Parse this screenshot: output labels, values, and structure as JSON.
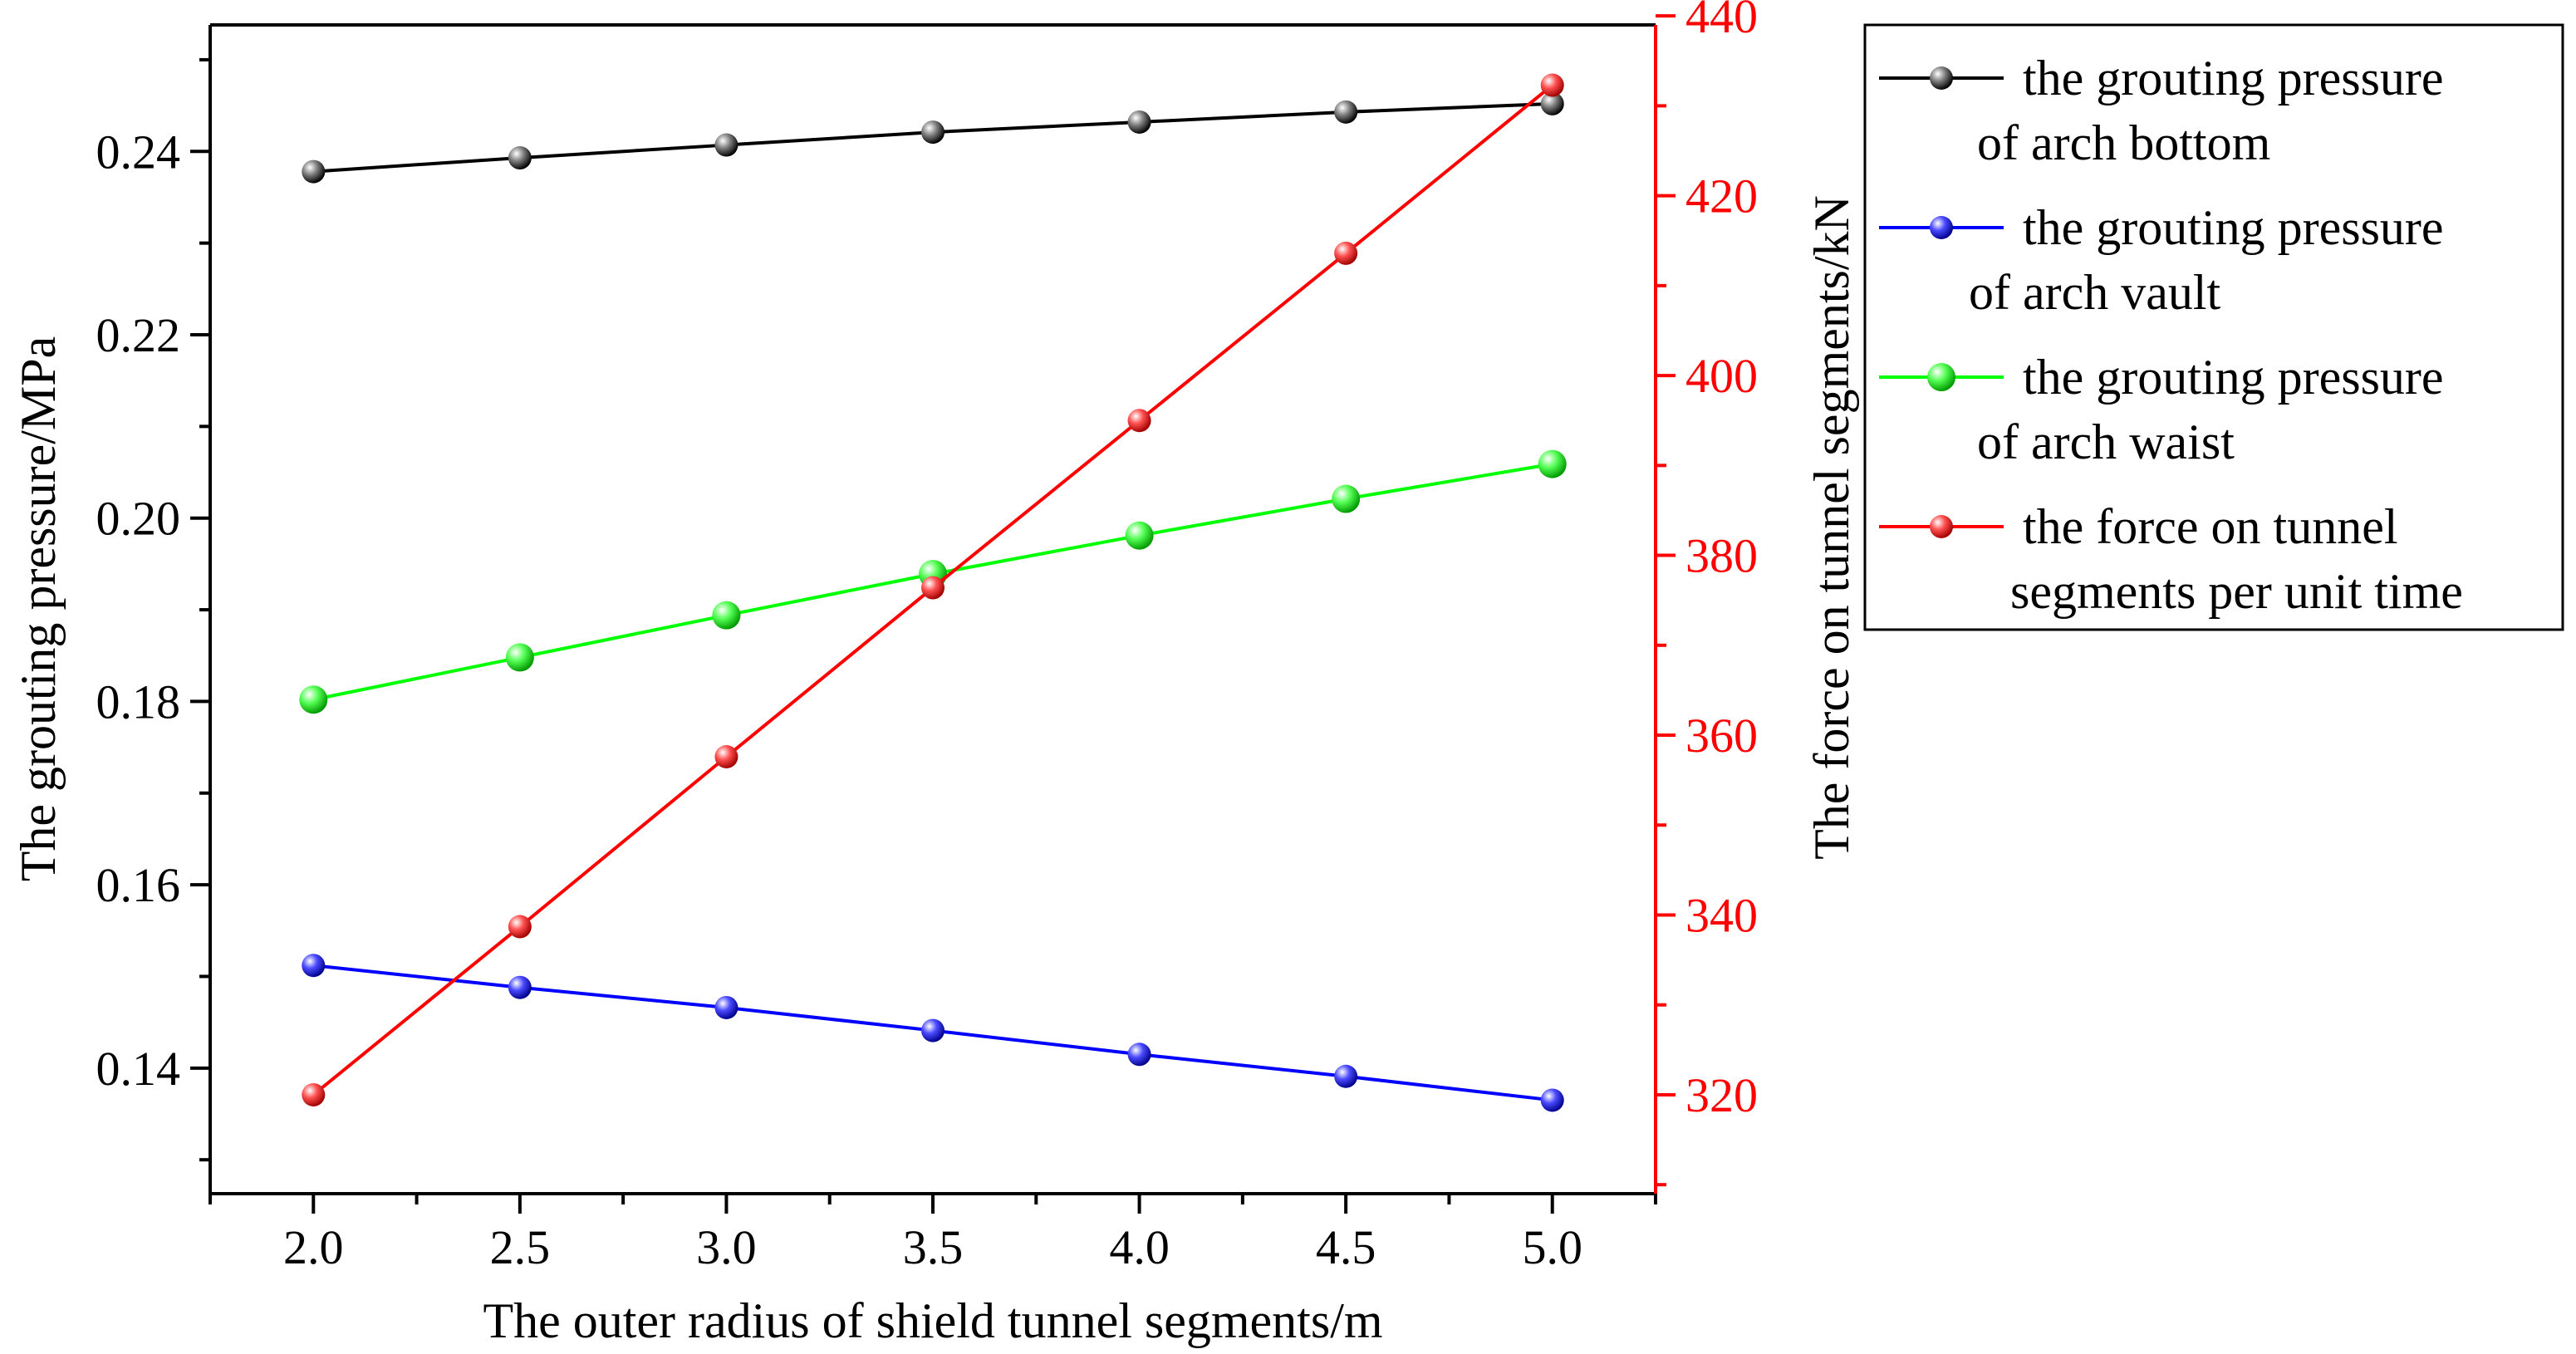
{
  "chart_data": {
    "type": "line",
    "x": [
      2.0,
      2.5,
      3.0,
      3.5,
      4.0,
      4.5,
      5.0
    ],
    "x_tick_labels": [
      "2.0",
      "2.5",
      "3.0",
      "3.5",
      "4.0",
      "4.5",
      "5.0"
    ],
    "xlabel": "The outer radius of shield tunnel segments/m",
    "xlim": [
      1.75,
      5.25
    ],
    "ylabel_left": "The grouting pressure/MPa",
    "ylim_left": [
      0.1263,
      0.2538
    ],
    "yticks_left": [
      "0.14",
      "0.16",
      "0.18",
      "0.20",
      "0.22",
      "0.24"
    ],
    "ylabel_right": "The force on tunnel segments/kN",
    "ylim_right": [
      309,
      439
    ],
    "yticks_right": [
      "320",
      "340",
      "360",
      "380",
      "400",
      "420",
      "440"
    ],
    "right_axis_color": "#ff0000",
    "legend_position": "outside-right-top",
    "series": [
      {
        "name": "the grouting pressure of arch bottom",
        "legend_lines": [
          "the grouting pressure",
          "of arch bottom"
        ],
        "axis": "left",
        "color": "#000000",
        "marker": "ball-small",
        "values": [
          0.2378,
          0.2393,
          0.2407,
          0.2421,
          0.2432,
          0.2443,
          0.2452
        ]
      },
      {
        "name": "the grouting pressure of arch vault",
        "legend_lines": [
          "the grouting pressure",
          "of arch vault"
        ],
        "axis": "left",
        "color": "#0000ff",
        "marker": "ball-small",
        "values": [
          0.1512,
          0.1488,
          0.1466,
          0.1441,
          0.1415,
          0.1391,
          0.1365
        ]
      },
      {
        "name": "the grouting pressure of arch waist",
        "legend_lines": [
          "the grouting pressure",
          "of arch waist"
        ],
        "axis": "left",
        "color": "#00ff00",
        "marker": "ball-large",
        "values": [
          0.1802,
          0.1848,
          0.1894,
          0.1939,
          0.1981,
          0.2021,
          0.2059
        ]
      },
      {
        "name": "the force on tunnel segments per unit time",
        "legend_lines": [
          "the force on tunnel",
          "segments per unit time"
        ],
        "axis": "right",
        "color": "#ff0000",
        "marker": "ball-small",
        "values": [
          320.0,
          338.7,
          357.6,
          376.4,
          395.0,
          413.6,
          432.3
        ]
      }
    ]
  }
}
